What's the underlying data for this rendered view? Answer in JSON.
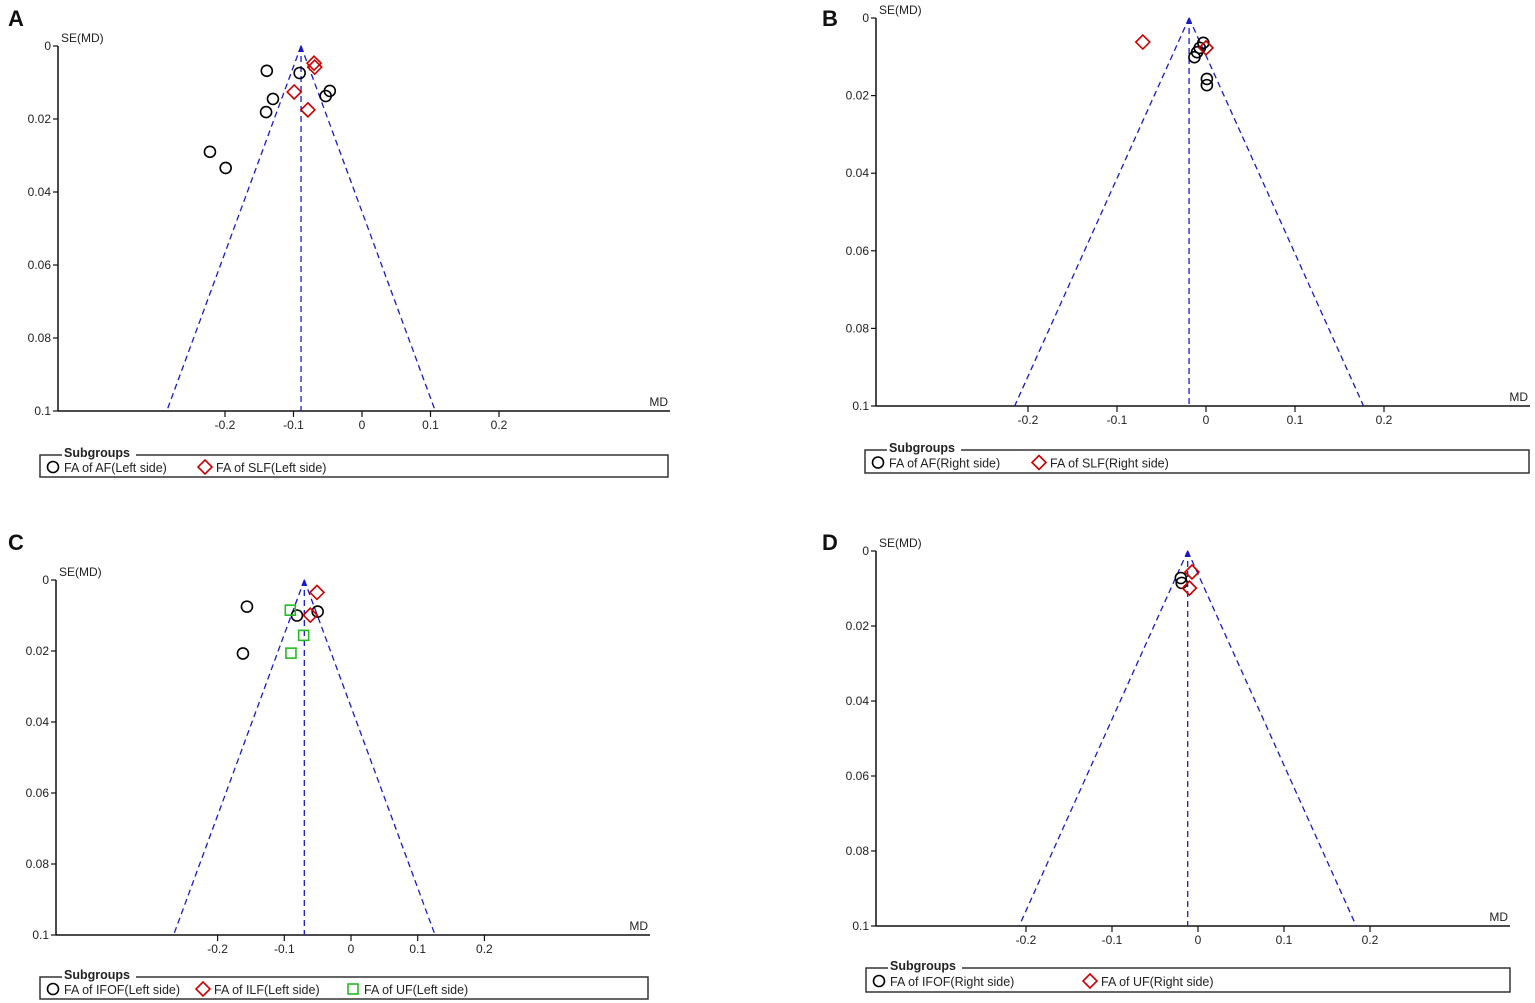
{
  "chart_data": [
    {
      "type": "scatter",
      "panel": "A",
      "xlabel": "MD",
      "ylabel": "SE(MD)",
      "xticks": [
        -0.2,
        -0.1,
        0,
        0.1,
        0.2
      ],
      "xtick_labels": [
        "-0.2",
        "-0.1",
        "0",
        "0.1",
        "0.2"
      ],
      "yticks": [
        0,
        0.02,
        0.04,
        0.06,
        0.08,
        0.1
      ],
      "ytick_labels": [
        "0",
        "0.02",
        "0.04",
        "0.06",
        "0.08",
        "0.1"
      ],
      "ylim": [
        0,
        0.1
      ],
      "y_inverted": true,
      "pooled_md": -0.089,
      "funnel_z": 1.96,
      "legend_title": "Subgroups",
      "series": [
        {
          "name": "FA of AF(Left side)",
          "marker": "circle",
          "color": "#000000",
          "points": [
            [
              -0.139,
              0.0068
            ],
            [
              -0.091,
              0.0074
            ],
            [
              -0.13,
              0.0145
            ],
            [
              -0.14,
              0.0181
            ],
            [
              -0.047,
              0.0123
            ],
            [
              -0.053,
              0.0137
            ],
            [
              -0.222,
              0.029
            ],
            [
              -0.199,
              0.0334
            ]
          ]
        },
        {
          "name": "FA of SLF(Left side)",
          "marker": "diamond",
          "color": "#cc0000",
          "points": [
            [
              -0.07,
              0.0047
            ],
            [
              -0.069,
              0.0058
            ],
            [
              -0.099,
              0.0126
            ],
            [
              -0.079,
              0.0175
            ]
          ]
        }
      ]
    },
    {
      "type": "scatter",
      "panel": "B",
      "xlabel": "MD",
      "ylabel": "SE(MD)",
      "xticks": [
        -0.2,
        -0.1,
        0,
        0.1,
        0.2
      ],
      "xtick_labels": [
        "-0.2",
        "-0.1",
        "0",
        "0.1",
        "0.2"
      ],
      "yticks": [
        0,
        0.02,
        0.04,
        0.06,
        0.08,
        0.1
      ],
      "ytick_labels": [
        "0",
        "0.02",
        "0.04",
        "0.06",
        "0.08",
        "0.1"
      ],
      "ylim": [
        0,
        0.1
      ],
      "y_inverted": true,
      "pooled_md": -0.019,
      "funnel_z": 1.96,
      "legend_title": "Subgroups",
      "series": [
        {
          "name": "FA of AF(Right side)",
          "marker": "circle",
          "color": "#000000",
          "points": [
            [
              -0.003,
              0.0064
            ],
            [
              -0.007,
              0.0077
            ],
            [
              -0.01,
              0.0088
            ],
            [
              -0.013,
              0.0101
            ],
            [
              0.001,
              0.0157
            ],
            [
              0.001,
              0.0173
            ]
          ]
        },
        {
          "name": "FA of SLF(Right side)",
          "marker": "diamond",
          "color": "#cc0000",
          "points": [
            [
              -0.071,
              0.0062
            ],
            [
              0.0,
              0.0077
            ]
          ]
        }
      ]
    },
    {
      "type": "scatter",
      "panel": "C",
      "xlabel": "MD",
      "ylabel": "SE(MD)",
      "xticks": [
        -0.2,
        -0.1,
        0,
        0.1,
        0.2
      ],
      "xtick_labels": [
        "-0.2",
        "-0.1",
        "0",
        "0.1",
        "0.2"
      ],
      "yticks": [
        0,
        0.02,
        0.04,
        0.06,
        0.08,
        0.1
      ],
      "ytick_labels": [
        "0",
        "0.02",
        "0.04",
        "0.06",
        "0.08",
        "0.1"
      ],
      "ylim": [
        0,
        0.1
      ],
      "y_inverted": true,
      "pooled_md": -0.07,
      "funnel_z": 1.96,
      "legend_title": "Subgroups",
      "series": [
        {
          "name": "FA of IFOF(Left side)",
          "marker": "circle",
          "color": "#000000",
          "points": [
            [
              -0.156,
              0.0075
            ],
            [
              -0.081,
              0.01
            ],
            [
              -0.05,
              0.0089
            ],
            [
              -0.162,
              0.0207
            ]
          ]
        },
        {
          "name": "FA of ILF(Left side)",
          "marker": "diamond",
          "color": "#cc0000",
          "points": [
            [
              -0.051,
              0.0035
            ],
            [
              -0.061,
              0.0099
            ]
          ]
        },
        {
          "name": "FA of UF(Left side)",
          "marker": "square",
          "color": "#22bb22",
          "points": [
            [
              -0.091,
              0.0085
            ],
            [
              -0.071,
              0.0156
            ],
            [
              -0.09,
              0.0206
            ]
          ]
        }
      ]
    },
    {
      "type": "scatter",
      "panel": "D",
      "xlabel": "MD",
      "ylabel": "SE(MD)",
      "xticks": [
        -0.2,
        -0.1,
        0,
        0.1,
        0.2
      ],
      "xtick_labels": [
        "-0.2",
        "-0.1",
        "0",
        "0.1",
        "0.2"
      ],
      "yticks": [
        0,
        0.02,
        0.04,
        0.06,
        0.08,
        0.1
      ],
      "ytick_labels": [
        "0",
        "0.02",
        "0.04",
        "0.06",
        "0.08",
        "0.1"
      ],
      "ylim": [
        0,
        0.1
      ],
      "y_inverted": true,
      "pooled_md": -0.012,
      "funnel_z": 1.96,
      "legend_title": "Subgroups",
      "series": [
        {
          "name": "FA of IFOF(Right side)",
          "marker": "circle",
          "color": "#000000",
          "points": [
            [
              -0.02,
              0.0072
            ],
            [
              -0.019,
              0.0085
            ]
          ]
        },
        {
          "name": "FA of UF(Right side)",
          "marker": "diamond",
          "color": "#cc0000",
          "points": [
            [
              -0.007,
              0.0056
            ],
            [
              -0.01,
              0.0099
            ]
          ]
        }
      ]
    }
  ],
  "colors": {
    "funnel": "#1a1acc",
    "axis": "#111111"
  }
}
